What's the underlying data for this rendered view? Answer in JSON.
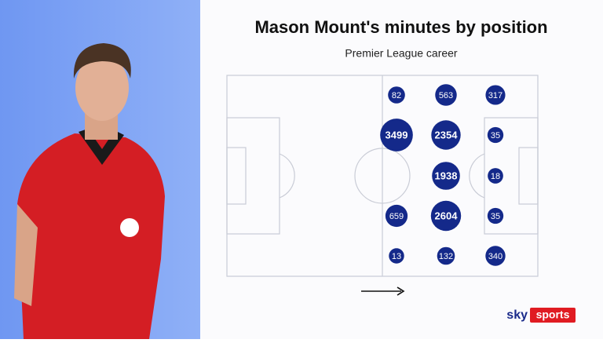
{
  "chart_data": {
    "type": "bubble",
    "title": "Mason Mount's minutes by position",
    "subtitle": "Premier League career",
    "values": [
      [
        82,
        563,
        317
      ],
      [
        3499,
        2354,
        35
      ],
      [
        null,
        1938,
        18
      ],
      [
        659,
        2604,
        35
      ],
      [
        13,
        132,
        340
      ]
    ],
    "color": "#14298a"
  },
  "logo": {
    "brand": "sky",
    "product": "sports"
  }
}
